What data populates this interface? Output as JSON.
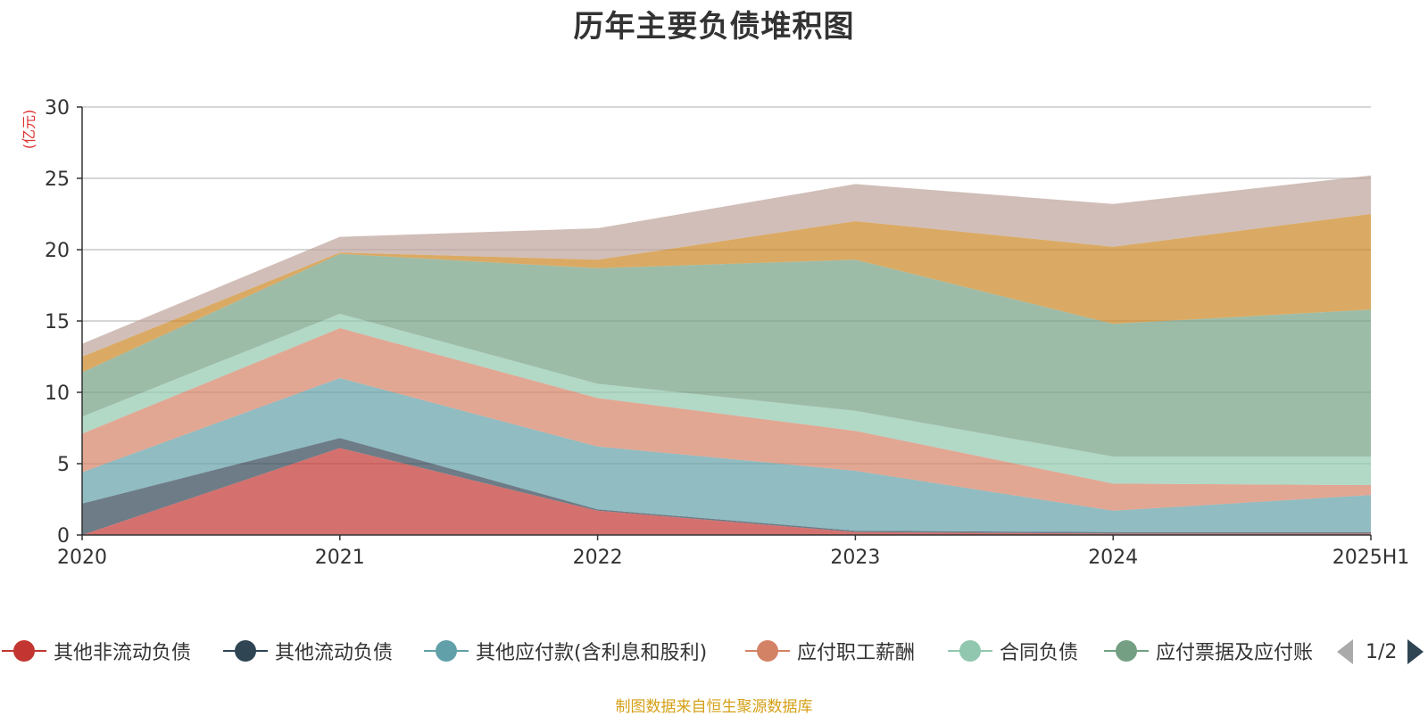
{
  "chart_data": {
    "type": "area",
    "title": "历年主要负债堆积图",
    "ylabel": "(亿元)",
    "xlabel": "",
    "categories": [
      "2020",
      "2021",
      "2022",
      "2023",
      "2024",
      "2025H1"
    ],
    "ylim": [
      0,
      30
    ],
    "yticks": [
      0,
      5,
      10,
      15,
      20,
      25,
      30
    ],
    "stacked": true,
    "grid": true,
    "legend_position": "bottom",
    "series": [
      {
        "name": "其他非流动负债",
        "color": "#c23531",
        "values": [
          0.0,
          6.1,
          1.7,
          0.2,
          0.1,
          0.1
        ]
      },
      {
        "name": "其他流动负债",
        "color": "#2f4554",
        "values": [
          2.2,
          0.7,
          0.1,
          0.1,
          0.1,
          0.1
        ]
      },
      {
        "name": "其他应付款(含利息和股利)",
        "color": "#61a0a8",
        "values": [
          2.2,
          4.2,
          4.4,
          4.2,
          1.5,
          2.6
        ]
      },
      {
        "name": "应付职工薪酬",
        "color": "#d48265",
        "values": [
          2.7,
          3.5,
          3.4,
          2.8,
          1.9,
          0.7
        ]
      },
      {
        "name": "合同负债",
        "color": "#91c7ae",
        "values": [
          1.2,
          1.0,
          1.0,
          1.4,
          1.9,
          2.0
        ]
      },
      {
        "name": "应付票据及应付账款",
        "color": "#749f83",
        "values": [
          3.1,
          4.2,
          8.1,
          10.6,
          9.3,
          10.3
        ]
      },
      {
        "color": "#ca8622",
        "values": [
          1.1,
          0.1,
          0.6,
          2.7,
          5.4,
          6.7
        ]
      },
      {
        "color": "#bda29a",
        "values": [
          0.9,
          1.1,
          2.2,
          2.6,
          3.0,
          2.7
        ]
      }
    ]
  },
  "legend": {
    "items": [
      {
        "label": "其他非流动负债",
        "color": "#c23531"
      },
      {
        "label": "其他流动负债",
        "color": "#2f4554"
      },
      {
        "label": "其他应付款(含利息和股利)",
        "color": "#61a0a8"
      },
      {
        "label": "应付职工薪酬",
        "color": "#d48265"
      },
      {
        "label": "合同负债",
        "color": "#91c7ae"
      },
      {
        "label": "应付票据及应付账",
        "color": "#749f83"
      }
    ],
    "page": "1/2"
  },
  "source": "制图数据来自恒生聚源数据库"
}
